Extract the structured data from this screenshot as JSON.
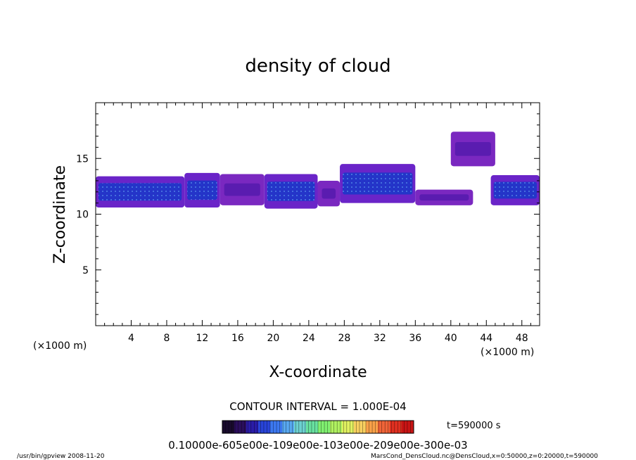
{
  "chart_data": {
    "type": "heatmap",
    "title": "density of cloud",
    "xlabel": "X-coordinate",
    "ylabel": "Z-coordinate",
    "x_unit_left": "(×1000 m)",
    "x_unit_right": "(×1000 m)",
    "xlim": [
      0,
      50
    ],
    "ylim": [
      0,
      20
    ],
    "x_ticks": [
      "4",
      "8",
      "12",
      "16",
      "20",
      "24",
      "28",
      "32",
      "36",
      "40",
      "44",
      "48"
    ],
    "x_tick_values": [
      4,
      8,
      12,
      16,
      20,
      24,
      28,
      32,
      36,
      40,
      44,
      48
    ],
    "y_ticks": [
      "5",
      "10",
      "15"
    ],
    "y_tick_values": [
      5,
      10,
      15
    ],
    "contour_interval": "CONTOUR INTERVAL = 1.000E-04",
    "time_label": "t=590000 s",
    "colorbar_labels_text": "0.10000e-605e00e-109e00e-103e00e-209e00e-300e-03",
    "colorbar_colors": [
      "#180a2c",
      "#2a0e5c",
      "#2a1ca8",
      "#2844d8",
      "#3c78f0",
      "#58a8f0",
      "#6cd0d0",
      "#68e0a0",
      "#80f070",
      "#b0f060",
      "#e0f060",
      "#f8d060",
      "#f8a048",
      "#f06438",
      "#e03020",
      "#c81414"
    ],
    "cloud_regions": [
      {
        "xmin": 0.0,
        "xmax": 10.0,
        "zmin": 10.6,
        "zmax": 13.4,
        "level": "blue"
      },
      {
        "xmin": 10.0,
        "xmax": 14.0,
        "zmin": 10.6,
        "zmax": 13.7,
        "level": "blue"
      },
      {
        "xmin": 14.0,
        "xmax": 19.0,
        "zmin": 10.8,
        "zmax": 13.6,
        "level": "violet"
      },
      {
        "xmin": 19.0,
        "xmax": 25.0,
        "zmin": 10.5,
        "zmax": 13.6,
        "level": "blue"
      },
      {
        "xmin": 25.0,
        "xmax": 27.5,
        "zmin": 10.7,
        "zmax": 13.0,
        "level": "violet"
      },
      {
        "xmin": 27.5,
        "xmax": 36.0,
        "zmin": 11.0,
        "zmax": 14.5,
        "level": "blue"
      },
      {
        "xmin": 36.0,
        "xmax": 42.5,
        "zmin": 10.8,
        "zmax": 12.2,
        "level": "violet"
      },
      {
        "xmin": 40.0,
        "xmax": 45.0,
        "zmin": 14.3,
        "zmax": 17.4,
        "level": "violet"
      },
      {
        "xmin": 44.5,
        "xmax": 50.0,
        "zmin": 10.8,
        "zmax": 13.5,
        "level": "blue"
      }
    ]
  },
  "footer": {
    "left": "/usr/bin/gpview   2008-11-20",
    "right": "MarsCond_DensCloud.nc@DensCloud,x=0:50000,z=0:20000,t=590000"
  }
}
